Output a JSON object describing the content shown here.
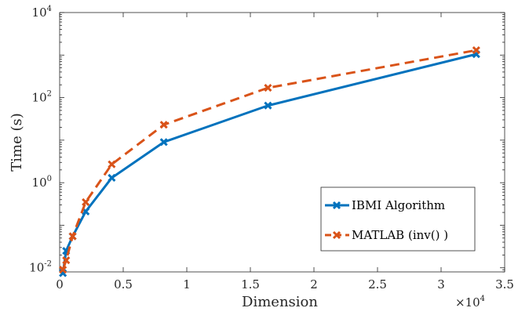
{
  "chart_data": {
    "type": "line",
    "title": "",
    "xlabel": "Dimension",
    "ylabel": "Time (s)",
    "x_multiplier": "×10",
    "x_multiplier_exp": "4",
    "xlim": [
      0,
      35000
    ],
    "ylim": [
      0.008,
      10000
    ],
    "yscale": "log",
    "xticks": [
      {
        "value": 0,
        "label": "0"
      },
      {
        "value": 5000,
        "label": "0.5"
      },
      {
        "value": 10000,
        "label": "1"
      },
      {
        "value": 15000,
        "label": "1.5"
      },
      {
        "value": 20000,
        "label": "2"
      },
      {
        "value": 25000,
        "label": "2.5"
      },
      {
        "value": 30000,
        "label": "3"
      },
      {
        "value": 35000,
        "label": "3.5"
      }
    ],
    "yticks": [
      {
        "value": 0.01,
        "base": "10",
        "exp": "-2"
      },
      {
        "value": 1,
        "base": "10",
        "exp": "0"
      },
      {
        "value": 100,
        "base": "10",
        "exp": "2"
      },
      {
        "value": 10000,
        "base": "10",
        "exp": "4"
      }
    ],
    "grid": false,
    "legend_position": "bottom-right",
    "series": [
      {
        "name": "IBMI Algorithm",
        "color": "#0072BD",
        "dash": "solid",
        "x": [
          256,
          512,
          1024,
          2048,
          4096,
          8192,
          16384,
          32768
        ],
        "y": [
          0.0075,
          0.025,
          0.055,
          0.21,
          1.3,
          9,
          65,
          1050
        ]
      },
      {
        "name": "MATLAB (inv() )",
        "color": "#D95319",
        "dash": "dashed",
        "x": [
          256,
          512,
          1024,
          2048,
          4096,
          8192,
          16384,
          32768
        ],
        "y": [
          0.009,
          0.015,
          0.055,
          0.35,
          2.7,
          23,
          170,
          1300
        ]
      }
    ]
  }
}
